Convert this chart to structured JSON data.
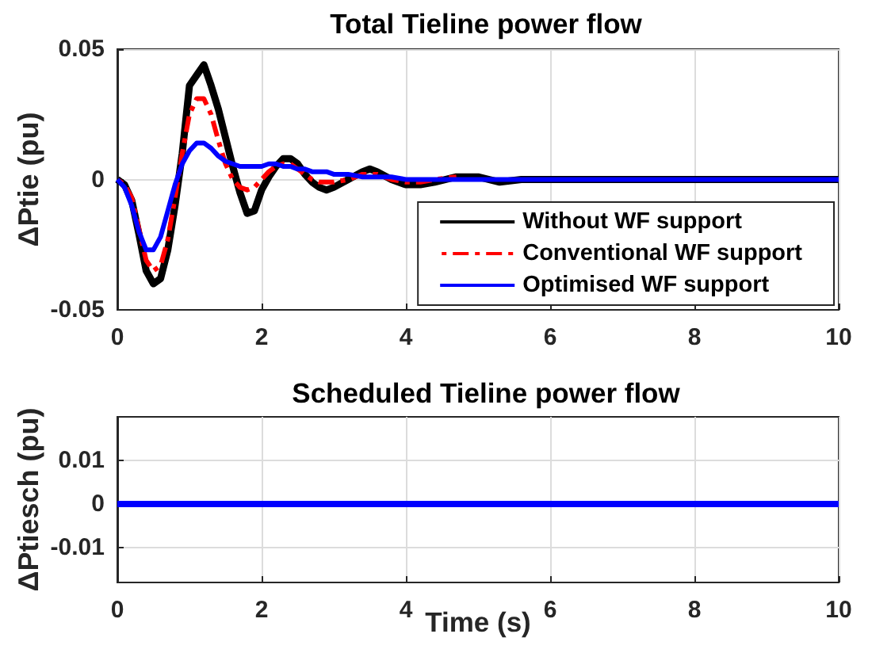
{
  "chart_data": [
    {
      "type": "line",
      "title": "Total Tieline power flow",
      "ylabel": "ΔPtie (pu)",
      "x": [
        0,
        0.1,
        0.2,
        0.3,
        0.4,
        0.5,
        0.6,
        0.7,
        0.8,
        0.9,
        1.0,
        1.1,
        1.2,
        1.3,
        1.4,
        1.5,
        1.6,
        1.7,
        1.8,
        1.9,
        2.0,
        2.1,
        2.2,
        2.3,
        2.4,
        2.5,
        2.6,
        2.7,
        2.8,
        2.9,
        3.0,
        3.2,
        3.4,
        3.5,
        3.6,
        3.8,
        4.0,
        4.2,
        4.4,
        4.7,
        5.0,
        5.3,
        5.6,
        6.0,
        6.5,
        7.0,
        7.5,
        8.0,
        9.0,
        10.0
      ],
      "series": [
        {
          "name": "Without WF support",
          "color": "#000000",
          "line_style": "solid",
          "values": [
            0,
            -0.002,
            -0.008,
            -0.021,
            -0.035,
            -0.04,
            -0.038,
            -0.027,
            -0.01,
            0.01,
            0.036,
            0.04,
            0.044,
            0.036,
            0.027,
            0.016,
            0.005,
            -0.005,
            -0.013,
            -0.012,
            -0.004,
            0.001,
            0.005,
            0.008,
            0.008,
            0.006,
            0.002,
            -0.001,
            -0.003,
            -0.004,
            -0.003,
            0,
            0.003,
            0.004,
            0.003,
            0,
            -0.002,
            -0.002,
            -0.001,
            0.001,
            0.001,
            -0.001,
            0,
            0,
            0,
            0,
            0,
            0,
            0,
            0
          ]
        },
        {
          "name": "Conventional WF support",
          "color": "#ff0000",
          "line_style": "dashed",
          "values": [
            0,
            -0.002,
            -0.007,
            -0.019,
            -0.031,
            -0.035,
            -0.033,
            -0.023,
            -0.007,
            0.01,
            0.025,
            0.031,
            0.031,
            0.025,
            0.015,
            0.006,
            0,
            -0.003,
            -0.004,
            -0.003,
            0,
            0.003,
            0.005,
            0.006,
            0.006,
            0.004,
            0.002,
            0,
            -0.001,
            -0.001,
            -0.001,
            0,
            0.002,
            0.002,
            0.002,
            0,
            -0.001,
            -0.001,
            0,
            0.001,
            null,
            null,
            null,
            null,
            null,
            null,
            null,
            null,
            null,
            null
          ]
        },
        {
          "name": "Optimised WF support",
          "color": "#0000ff",
          "line_style": "solid",
          "values": [
            0,
            -0.003,
            -0.01,
            -0.02,
            -0.027,
            -0.027,
            -0.022,
            -0.012,
            -0.002,
            0.006,
            0.011,
            0.014,
            0.014,
            0.012,
            0.009,
            0.007,
            0.006,
            0.005,
            0.005,
            0.005,
            0.005,
            0.006,
            0.006,
            0.005,
            0.005,
            0.004,
            0.004,
            0.003,
            0.003,
            0.003,
            0.002,
            0.002,
            0.001,
            0.001,
            0.001,
            0.001,
            0,
            0,
            0,
            0,
            0,
            0,
            0,
            0,
            0,
            0,
            0,
            0,
            0,
            0
          ]
        }
      ],
      "xlim": [
        0,
        10
      ],
      "xticks": [
        0,
        2,
        4,
        6,
        8,
        10
      ],
      "ylim": [
        -0.05,
        0.05
      ],
      "yticks": [
        -0.05,
        0,
        0.05
      ],
      "grid": true,
      "legend": "bottom right"
    },
    {
      "type": "line",
      "title": "Scheduled Tieline power flow",
      "xlabel": "Time (s)",
      "ylabel": "ΔPtiesch (pu)",
      "x": [
        0,
        10
      ],
      "series": [
        {
          "color": "#0000ff",
          "line_style": "solid",
          "values": [
            0,
            0
          ]
        }
      ],
      "xlim": [
        0,
        10
      ],
      "xticks": [
        0,
        2,
        4,
        6,
        8,
        10
      ],
      "ylim": [
        -0.018,
        0.02
      ],
      "yticks": [
        -0.01,
        0,
        0.01
      ],
      "grid": true
    }
  ]
}
